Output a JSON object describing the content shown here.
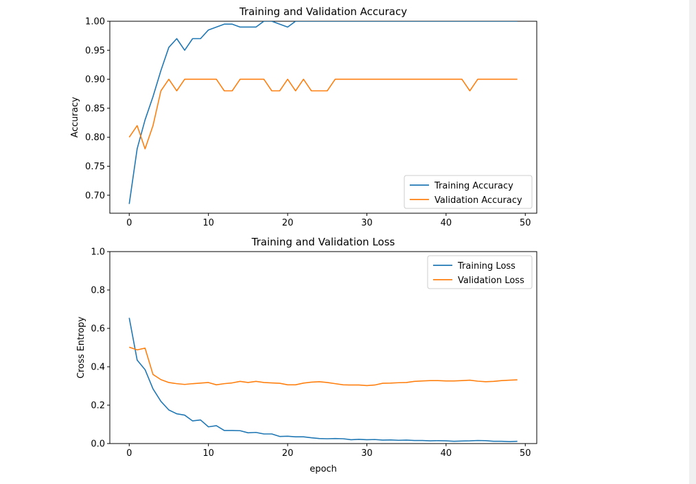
{
  "chart_data": [
    {
      "type": "line",
      "title": "Training and Validation Accuracy",
      "xlabel": "",
      "ylabel": "Accuracy",
      "xlim": [
        -2.45,
        51.45
      ],
      "ylim": [
        0.669,
        1.0
      ],
      "xticks": [
        0,
        10,
        20,
        30,
        40,
        50
      ],
      "yticks": [
        0.7,
        0.75,
        0.8,
        0.85,
        0.9,
        0.95,
        1.0
      ],
      "ytick_labels": [
        "0.70",
        "0.75",
        "0.80",
        "0.85",
        "0.90",
        "0.95",
        "1.00"
      ],
      "legend": "lower-right",
      "grid": false,
      "x": [
        0,
        1,
        2,
        3,
        4,
        5,
        6,
        7,
        8,
        9,
        10,
        11,
        12,
        13,
        14,
        15,
        16,
        17,
        18,
        19,
        20,
        21,
        22,
        23,
        24,
        25,
        26,
        27,
        28,
        29,
        30,
        31,
        32,
        33,
        34,
        35,
        36,
        37,
        38,
        39,
        40,
        41,
        42,
        43,
        44,
        45,
        46,
        47,
        48,
        49
      ],
      "series": [
        {
          "name": "Training Accuracy",
          "color": "#1f77b4",
          "values": [
            0.685,
            0.78,
            0.83,
            0.87,
            0.915,
            0.955,
            0.97,
            0.95,
            0.97,
            0.97,
            0.985,
            0.99,
            0.995,
            0.995,
            0.99,
            0.99,
            0.99,
            1.0,
            1.0,
            0.995,
            0.99,
            1.0,
            1.0,
            1.0,
            1.0,
            1.0,
            1.0,
            1.0,
            1.0,
            1.0,
            1.0,
            1.0,
            1.0,
            1.0,
            1.0,
            1.0,
            1.0,
            1.0,
            1.0,
            1.0,
            1.0,
            1.0,
            1.0,
            1.0,
            1.0,
            1.0,
            1.0,
            1.0,
            1.0,
            1.0
          ]
        },
        {
          "name": "Validation Accuracy",
          "color": "#ff7f0e",
          "values": [
            0.8,
            0.82,
            0.78,
            0.82,
            0.88,
            0.9,
            0.88,
            0.9,
            0.9,
            0.9,
            0.9,
            0.9,
            0.88,
            0.88,
            0.9,
            0.9,
            0.9,
            0.9,
            0.88,
            0.88,
            0.9,
            0.88,
            0.9,
            0.88,
            0.88,
            0.88,
            0.9,
            0.9,
            0.9,
            0.9,
            0.9,
            0.9,
            0.9,
            0.9,
            0.9,
            0.9,
            0.9,
            0.9,
            0.9,
            0.9,
            0.9,
            0.9,
            0.9,
            0.88,
            0.9,
            0.9,
            0.9,
            0.9,
            0.9,
            0.9
          ]
        }
      ]
    },
    {
      "type": "line",
      "title": "Training and Validation Loss",
      "xlabel": "epoch",
      "ylabel": "Cross Entropy",
      "xlim": [
        -2.45,
        51.45
      ],
      "ylim": [
        0.0,
        1.0
      ],
      "xticks": [
        0,
        10,
        20,
        30,
        40,
        50
      ],
      "yticks": [
        0.0,
        0.2,
        0.4,
        0.6,
        0.8,
        1.0
      ],
      "ytick_labels": [
        "0.0",
        "0.2",
        "0.4",
        "0.6",
        "0.8",
        "1.0"
      ],
      "legend": "upper-right",
      "grid": false,
      "x": [
        0,
        1,
        2,
        3,
        4,
        5,
        6,
        7,
        8,
        9,
        10,
        11,
        12,
        13,
        14,
        15,
        16,
        17,
        18,
        19,
        20,
        21,
        22,
        23,
        24,
        25,
        26,
        27,
        28,
        29,
        30,
        31,
        32,
        33,
        34,
        35,
        36,
        37,
        38,
        39,
        40,
        41,
        42,
        43,
        44,
        45,
        46,
        47,
        48,
        49
      ],
      "series": [
        {
          "name": "Training Loss",
          "color": "#1f77b4",
          "values": [
            0.655,
            0.435,
            0.385,
            0.285,
            0.22,
            0.175,
            0.155,
            0.148,
            0.118,
            0.123,
            0.087,
            0.093,
            0.068,
            0.068,
            0.067,
            0.056,
            0.058,
            0.05,
            0.05,
            0.037,
            0.038,
            0.035,
            0.035,
            0.03,
            0.026,
            0.025,
            0.026,
            0.025,
            0.02,
            0.022,
            0.02,
            0.021,
            0.018,
            0.019,
            0.017,
            0.018,
            0.016,
            0.016,
            0.014,
            0.015,
            0.014,
            0.012,
            0.013,
            0.014,
            0.016,
            0.015,
            0.012,
            0.012,
            0.01,
            0.012
          ]
        },
        {
          "name": "Validation Loss",
          "color": "#ff7f0e",
          "values": [
            0.502,
            0.488,
            0.497,
            0.36,
            0.333,
            0.318,
            0.312,
            0.308,
            0.312,
            0.315,
            0.318,
            0.306,
            0.312,
            0.316,
            0.324,
            0.318,
            0.324,
            0.318,
            0.316,
            0.314,
            0.306,
            0.306,
            0.315,
            0.32,
            0.322,
            0.318,
            0.312,
            0.306,
            0.305,
            0.305,
            0.302,
            0.305,
            0.314,
            0.315,
            0.317,
            0.318,
            0.324,
            0.326,
            0.328,
            0.328,
            0.326,
            0.326,
            0.328,
            0.33,
            0.325,
            0.322,
            0.324,
            0.328,
            0.33,
            0.332
          ]
        }
      ]
    }
  ]
}
